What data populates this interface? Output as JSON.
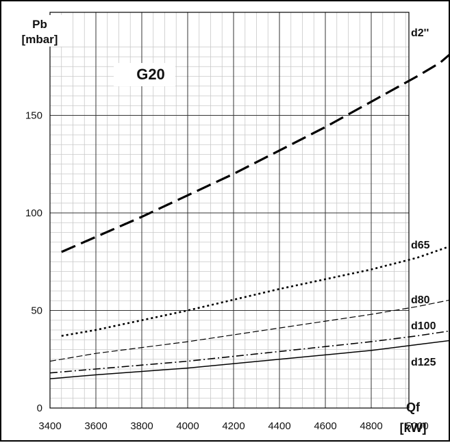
{
  "chart_data": {
    "type": "line",
    "title": "G20",
    "ylabel_line1": "Pb",
    "ylabel_line2": "[mbar]",
    "xlabel_line1": "Qf",
    "xlabel_line2": "[kW]",
    "xlim": [
      3400,
      5170
    ],
    "ylim": [
      0,
      187
    ],
    "x_ticks": [
      3400,
      3600,
      3800,
      4000,
      4200,
      4400,
      4600,
      4800,
      5000
    ],
    "y_ticks": [
      0,
      50,
      100,
      150
    ],
    "x_minor_step": 50,
    "y_minor_step": 5,
    "grid": true,
    "series": [
      {
        "name": "d2''",
        "style": "long-dash",
        "x": [
          3450,
          3800,
          4000,
          4200,
          4400,
          4600,
          4800,
          5000,
          5100,
          5170
        ],
        "y": [
          80,
          98,
          109,
          120,
          132,
          144,
          157,
          170,
          177,
          184
        ]
      },
      {
        "name": "d65",
        "style": "dotted",
        "x": [
          3450,
          3600,
          4000,
          4400,
          4800,
          5000,
          5170
        ],
        "y": [
          37,
          40,
          50,
          61,
          71,
          77,
          84
        ]
      },
      {
        "name": "d80",
        "style": "short-dash",
        "x": [
          3400,
          3600,
          4000,
          4400,
          4800,
          5000,
          5170
        ],
        "y": [
          24,
          28,
          34,
          41,
          48,
          52,
          56
        ]
      },
      {
        "name": "d100",
        "style": "dash-dot",
        "x": [
          3400,
          3600,
          4000,
          4400,
          4800,
          5000,
          5170
        ],
        "y": [
          18,
          20,
          24,
          29,
          34,
          37,
          40
        ]
      },
      {
        "name": "d125",
        "style": "solid",
        "x": [
          3400,
          3600,
          4000,
          4400,
          4800,
          5000,
          5170
        ],
        "y": [
          15,
          17,
          20.5,
          25,
          29.5,
          32.5,
          35
        ]
      }
    ]
  }
}
